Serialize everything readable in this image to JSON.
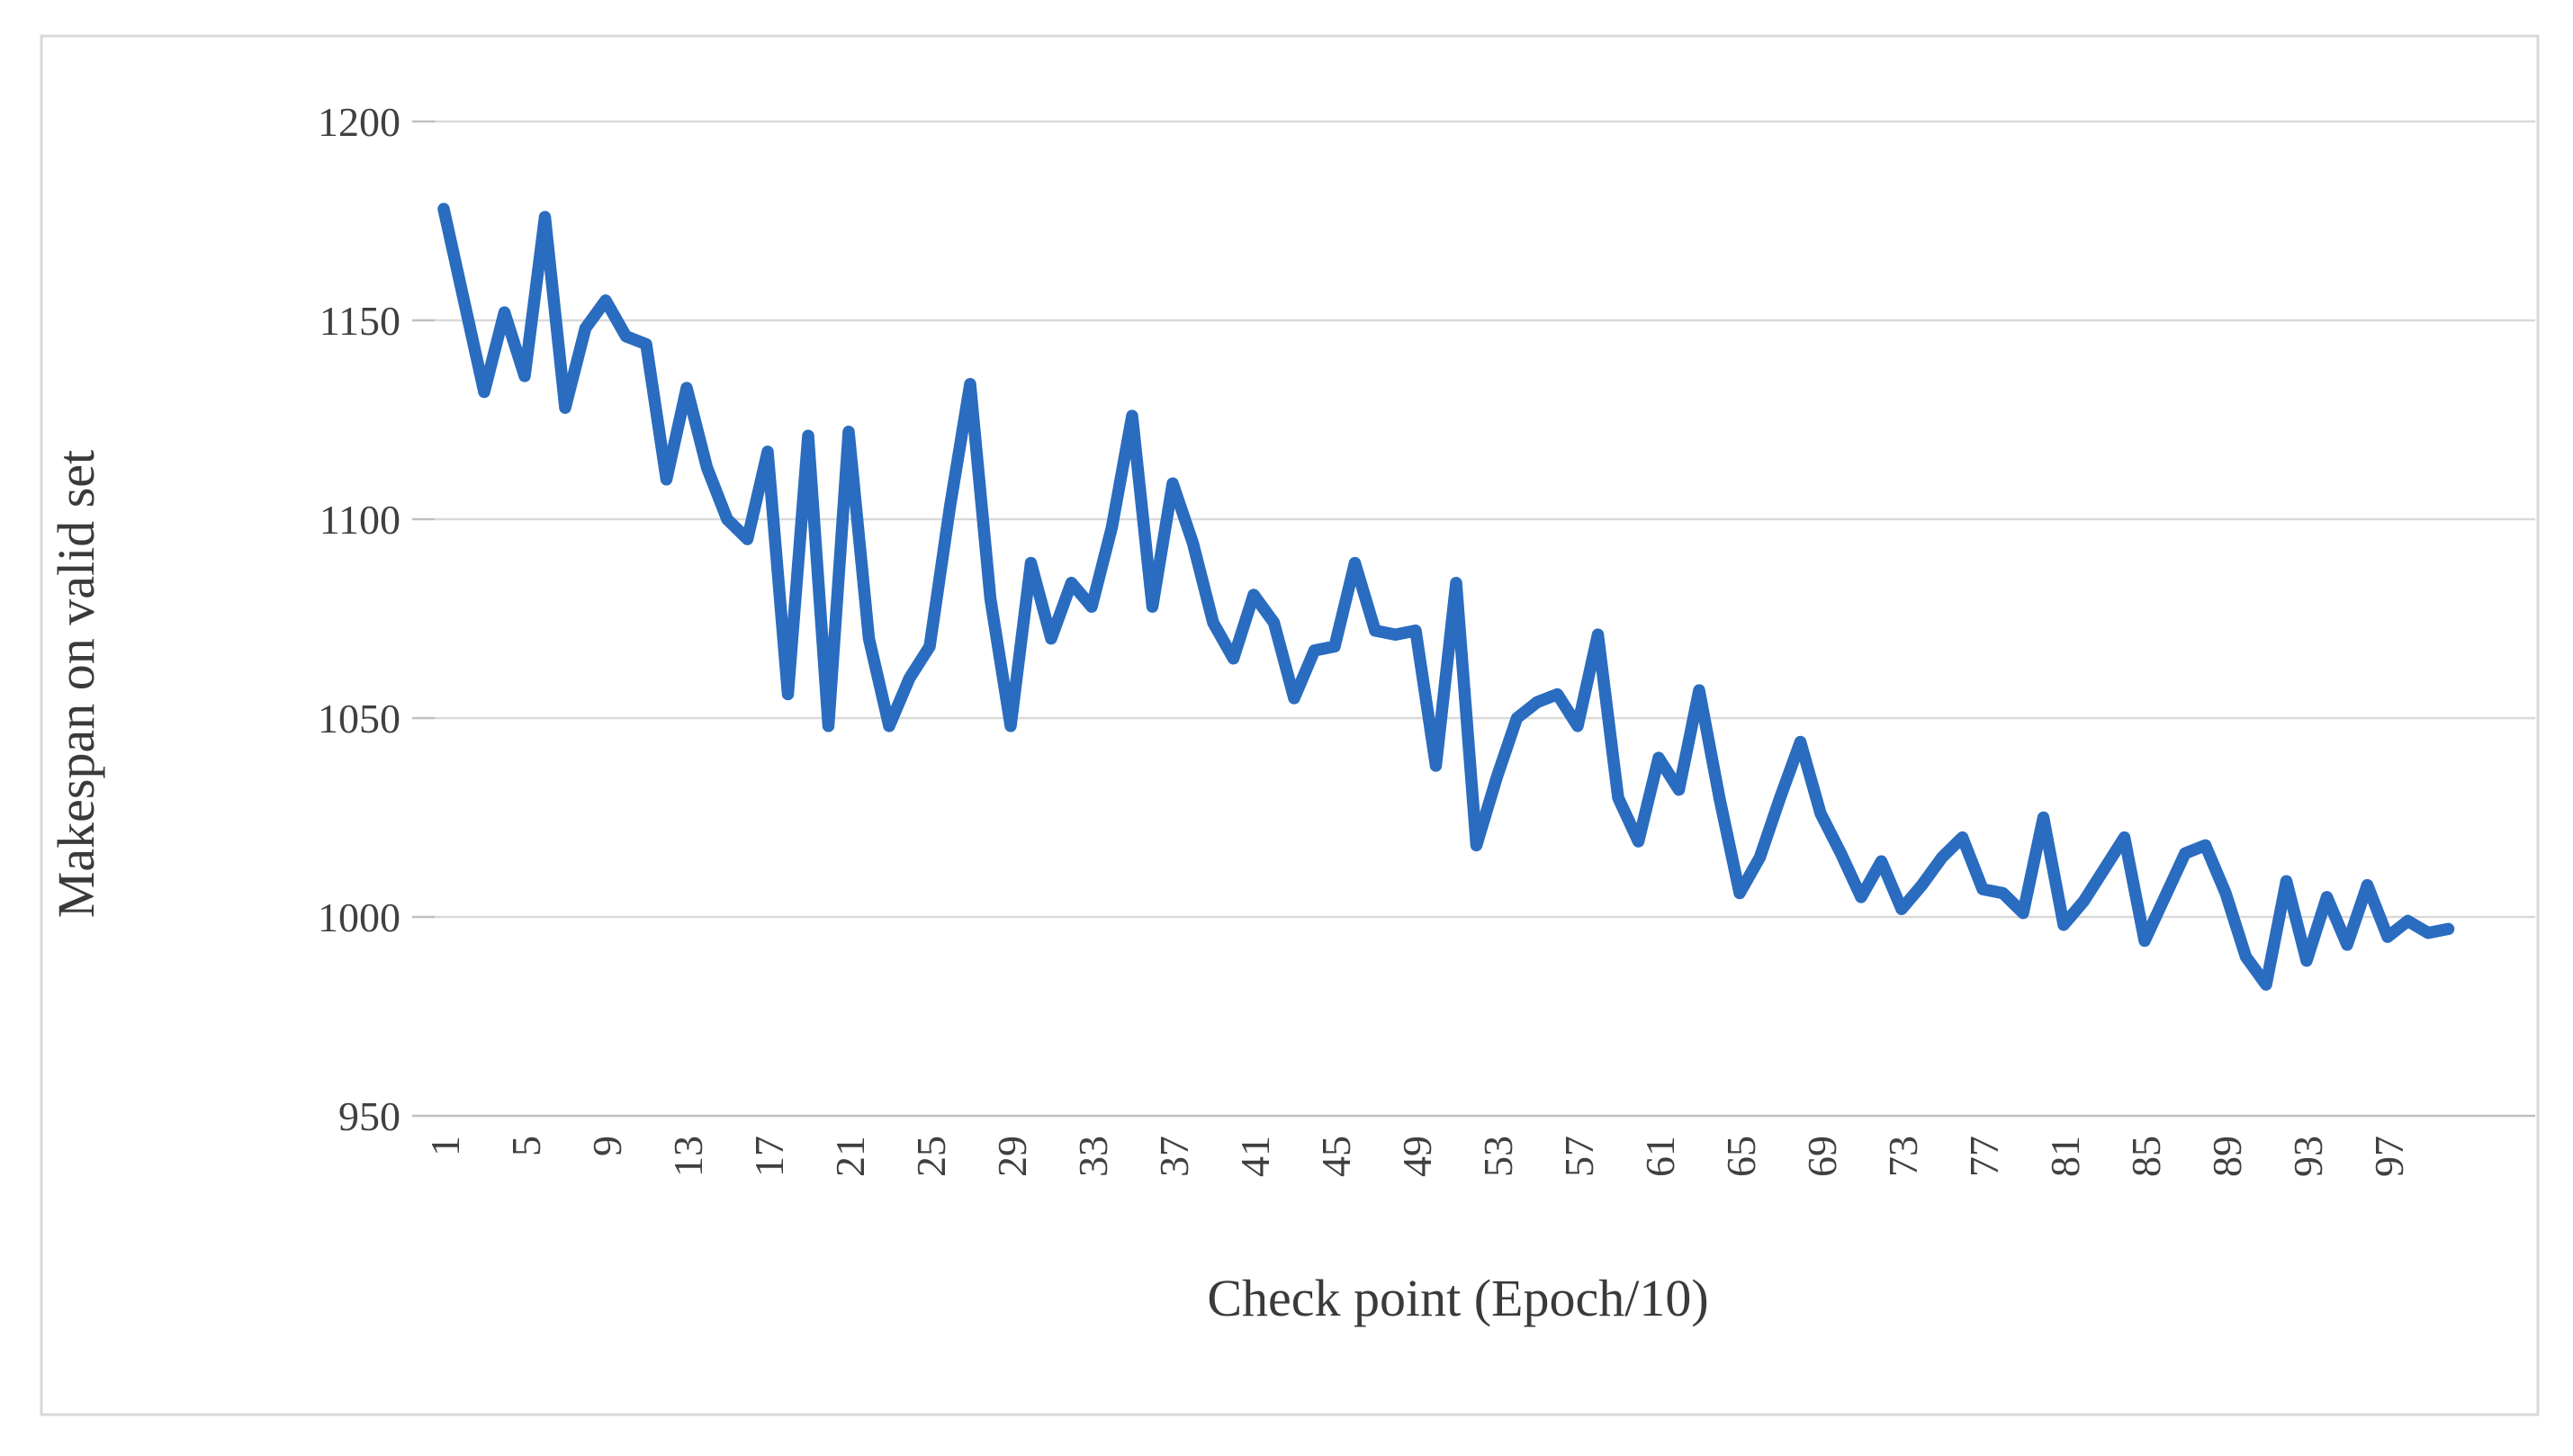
{
  "chart_data": {
    "type": "line",
    "title": "",
    "xlabel": "Check point (Epoch/10)",
    "ylabel": "Makespan on valid set",
    "x_count": 100,
    "x_tick_step": 4,
    "x_tick_labels": [
      "1",
      "5",
      "9",
      "13",
      "17",
      "21",
      "25",
      "29",
      "33",
      "37",
      "41",
      "45",
      "49",
      "53",
      "57",
      "61",
      "65",
      "69",
      "73",
      "77",
      "81",
      "85",
      "89",
      "93",
      "97"
    ],
    "y_ticks": [
      1200,
      1150,
      1100,
      1050,
      1000,
      950
    ],
    "ylim": [
      950,
      1200
    ],
    "grid": "horizontal",
    "legend": "none",
    "series": [
      {
        "name": "Makespan on valid set",
        "color": "#2A6CBF",
        "values": [
          1178,
          1155,
          1132,
          1152,
          1136,
          1176,
          1128,
          1148,
          1155,
          1146,
          1144,
          1110,
          1133,
          1113,
          1100,
          1095,
          1117,
          1056,
          1121,
          1048,
          1122,
          1070,
          1048,
          1060,
          1068,
          1103,
          1134,
          1080,
          1048,
          1089,
          1070,
          1084,
          1078,
          1098,
          1126,
          1078,
          1109,
          1094,
          1074,
          1065,
          1081,
          1074,
          1055,
          1067,
          1068,
          1089,
          1072,
          1071,
          1072,
          1038,
          1084,
          1018,
          1035,
          1050,
          1054,
          1056,
          1048,
          1071,
          1030,
          1019,
          1040,
          1032,
          1057,
          1030,
          1006,
          1015,
          1030,
          1044,
          1026,
          1016,
          1005,
          1014,
          1002,
          1008,
          1015,
          1020,
          1007,
          1006,
          1001,
          1025,
          998,
          1004,
          1012,
          1020,
          994,
          1005,
          1016,
          1018,
          1006,
          990,
          983,
          1009,
          989,
          1005,
          993,
          1008,
          995,
          999,
          996,
          997
        ]
      }
    ]
  },
  "colors": {
    "line": "#2A6CBF",
    "gridline": "#D9D9D9",
    "axis_line": "#BFBFBF",
    "figure_border": "#D9D9D9",
    "tick_text": "#404040",
    "title_text": "#3A3A3A",
    "background": "#FFFFFF"
  }
}
